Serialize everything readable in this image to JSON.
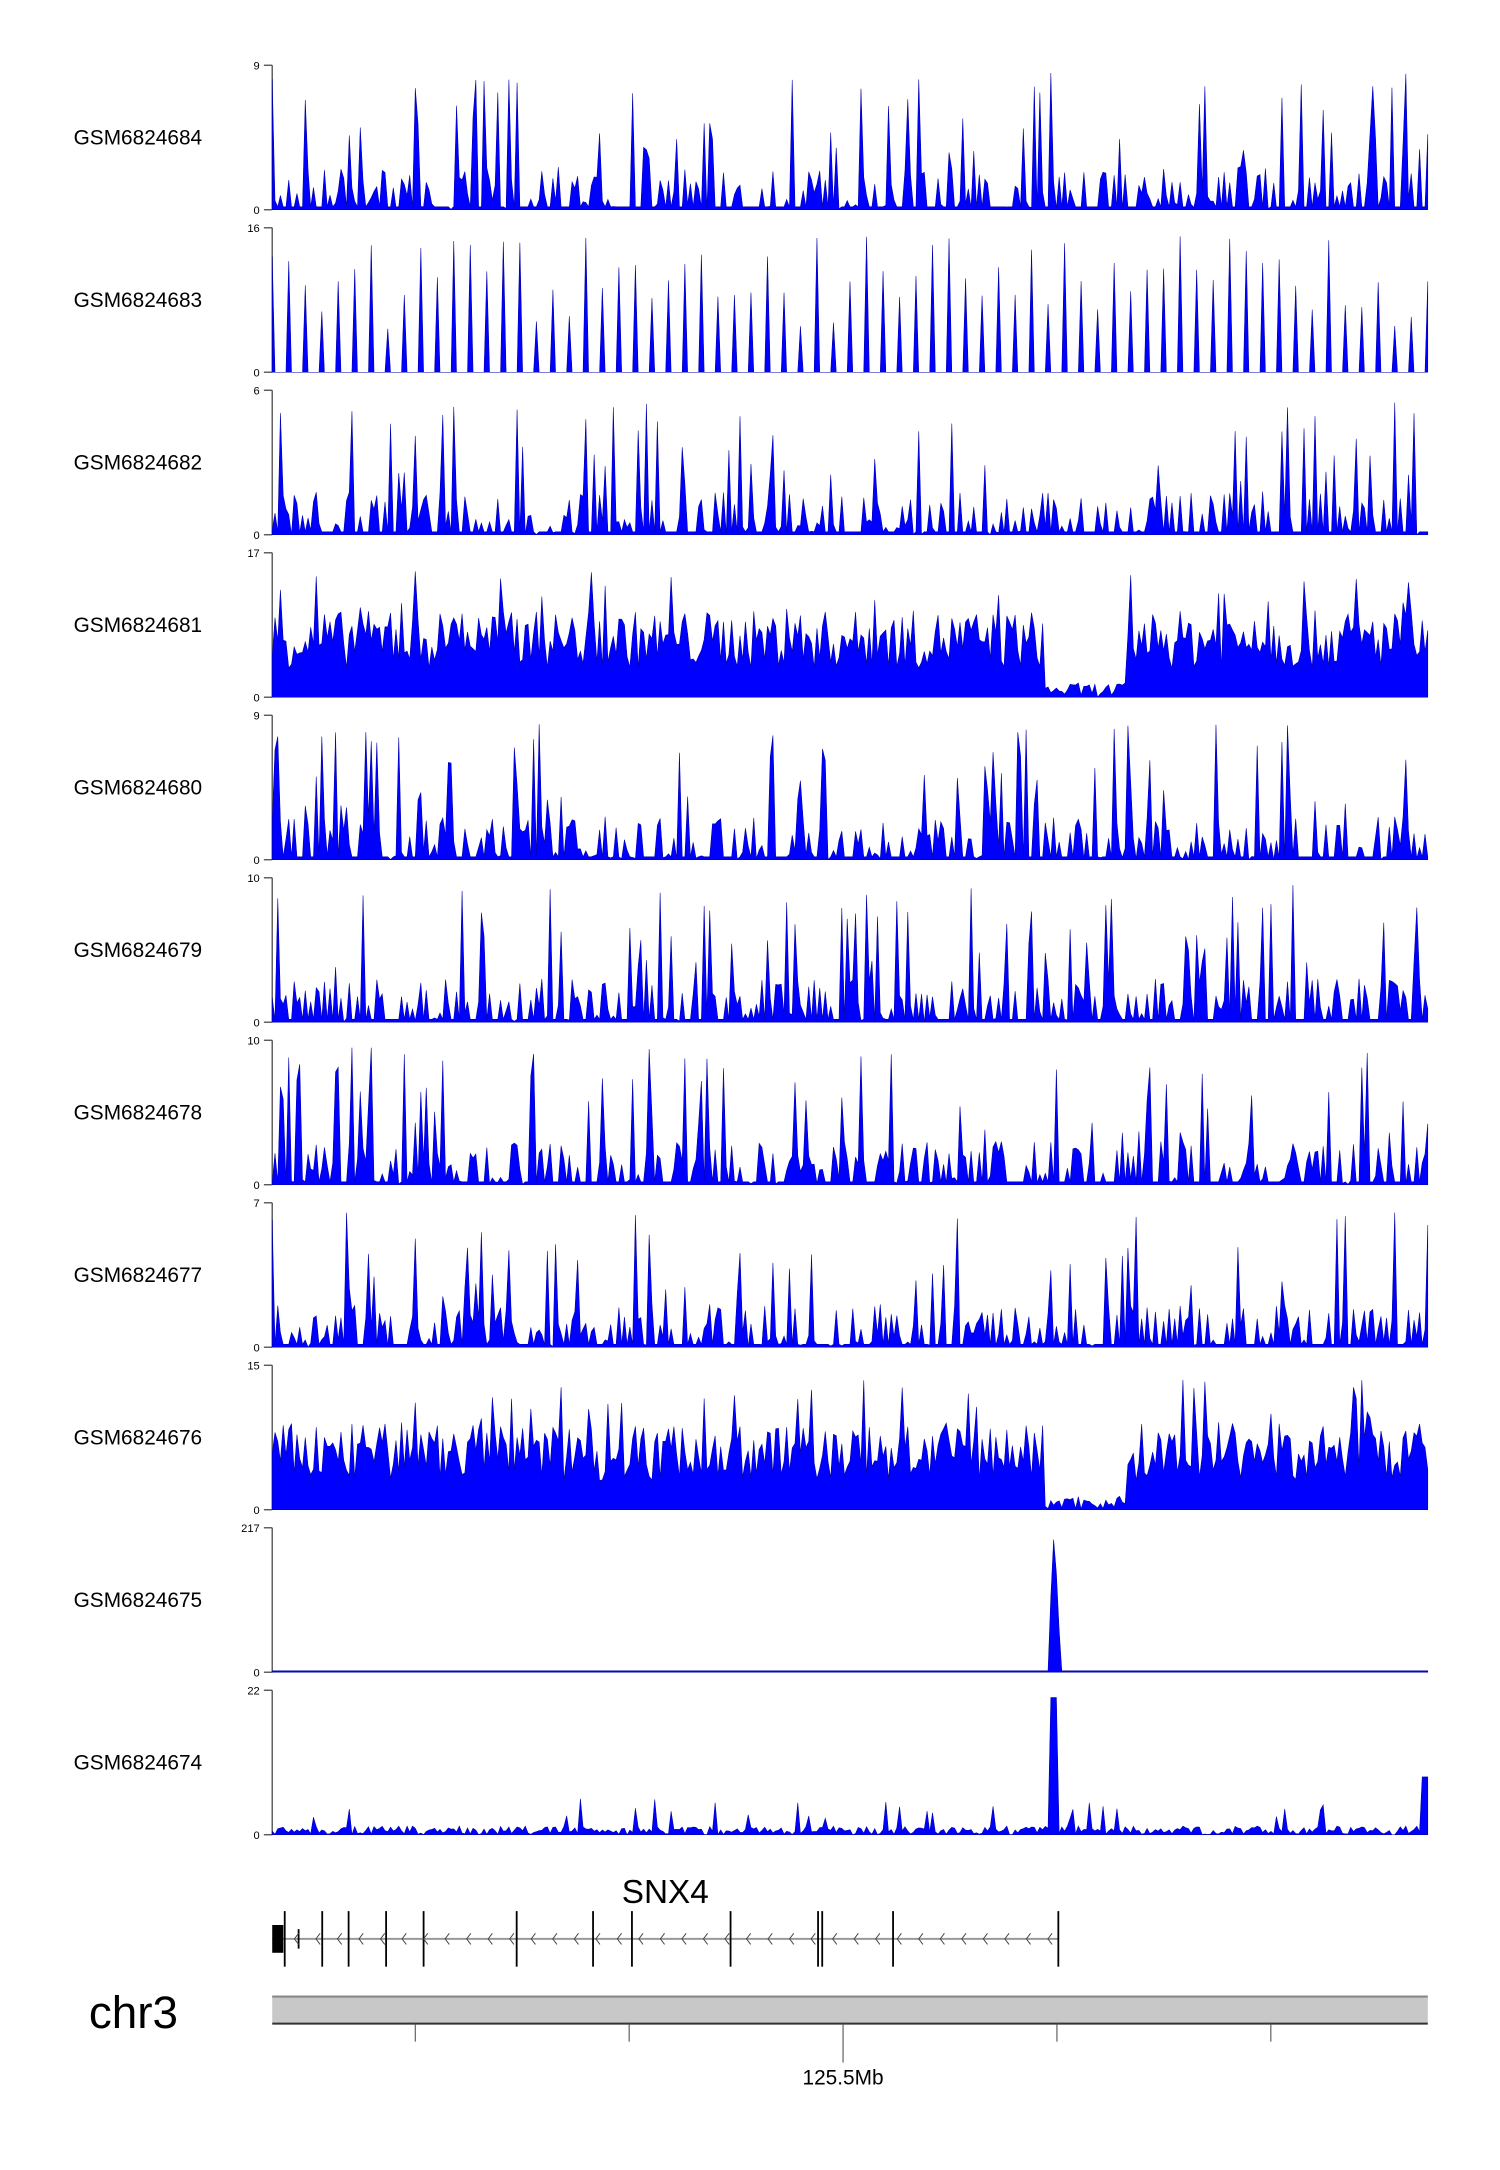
{
  "chart_data": {
    "type": "area",
    "title": "",
    "tracks": [
      {
        "name": "GSM6824684",
        "ylim": [
          0,
          9
        ],
        "ymax_label": "9",
        "ymin_label": "0",
        "profile": "spiky"
      },
      {
        "name": "GSM6824683",
        "ylim": [
          0,
          16
        ],
        "ymax_label": "16",
        "ymin_label": "0",
        "profile": "sparse"
      },
      {
        "name": "GSM6824682",
        "ylim": [
          0,
          6
        ],
        "ymax_label": "6",
        "ymin_label": "0",
        "profile": "spiky"
      },
      {
        "name": "GSM6824681",
        "ylim": [
          0,
          17
        ],
        "ymax_label": "17",
        "ymin_label": "0",
        "profile": "dense"
      },
      {
        "name": "GSM6824680",
        "ylim": [
          0,
          9
        ],
        "ymax_label": "9",
        "ymin_label": "0",
        "profile": "spiky"
      },
      {
        "name": "GSM6824679",
        "ylim": [
          0,
          10
        ],
        "ymax_label": "10",
        "ymin_label": "0",
        "profile": "spiky"
      },
      {
        "name": "GSM6824678",
        "ylim": [
          0,
          10
        ],
        "ymax_label": "10",
        "ymin_label": "0",
        "profile": "spiky"
      },
      {
        "name": "GSM6824677",
        "ylim": [
          0,
          7
        ],
        "ymax_label": "7",
        "ymin_label": "0",
        "profile": "spiky"
      },
      {
        "name": "GSM6824676",
        "ylim": [
          0,
          15
        ],
        "ymax_label": "15",
        "ymin_label": "0",
        "profile": "dense"
      },
      {
        "name": "GSM6824675",
        "ylim": [
          0,
          217
        ],
        "ymax_label": "217",
        "ymin_label": "0",
        "profile": "peak"
      },
      {
        "name": "GSM6824674",
        "ylim": [
          0,
          22
        ],
        "ymax_label": "22",
        "ymin_label": "0",
        "profile": "lowpeak"
      }
    ],
    "gene": {
      "name": "SNX4",
      "strand": "-"
    },
    "chromosome": "chr3",
    "axis_label": "125.5Mb",
    "color": "#0000ff"
  }
}
